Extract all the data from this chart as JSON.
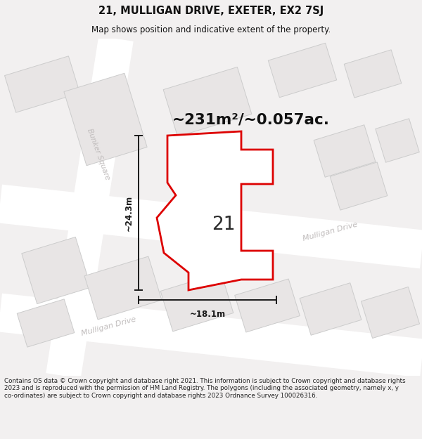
{
  "title": "21, MULLIGAN DRIVE, EXETER, EX2 7SJ",
  "subtitle": "Map shows position and indicative extent of the property.",
  "area_text": "~231m²/~0.057ac.",
  "label_21": "21",
  "dim_width": "~18.1m",
  "dim_height": "~24.3m",
  "footer": "Contains OS data © Crown copyright and database right 2021. This information is subject to Crown copyright and database rights 2023 and is reproduced with the permission of HM Land Registry. The polygons (including the associated geometry, namely x, y co-ordinates) are subject to Crown copyright and database rights 2023 Ordnance Survey 100026316.",
  "bg_color": "#f2f0f0",
  "map_bg": "#f2f0f0",
  "road_color": "#ffffff",
  "road_outline": "#dddddd",
  "building_fill": "#e8e5e5",
  "building_edge": "#cccccc",
  "plot_fill": "#ffffff",
  "plot_edge": "#dd0000",
  "plot_outline_fill": "#f9f5f5",
  "dim_line_color": "#1a1a1a",
  "road_label_color": "#cccccc",
  "street_label_color": "#c0bcbc",
  "title_color": "#111111",
  "footer_color": "#222222",
  "figsize": [
    6.0,
    6.25
  ],
  "dpi": 100
}
